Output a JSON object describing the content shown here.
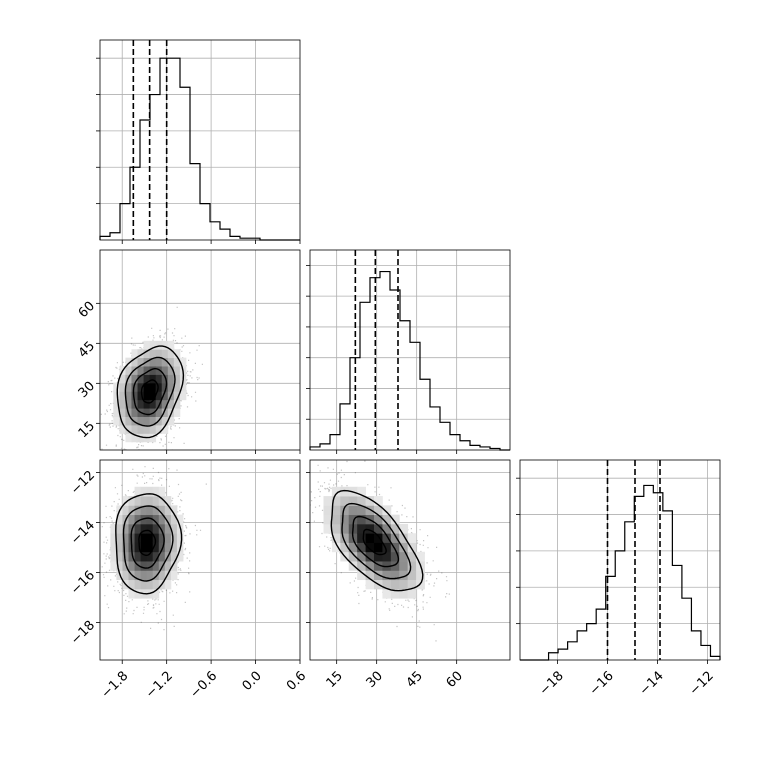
{
  "chart_data": {
    "type": "corner",
    "colors": {
      "line": "#000000",
      "grid": "#b0b0b0",
      "scatter": "#555555"
    },
    "grid": true,
    "params": [
      {
        "range": [
          -2.1,
          0.6
        ],
        "ticks": [
          -1.8,
          -1.2,
          -0.6,
          0.0,
          0.6
        ],
        "tick_labels": [
          "−1.8",
          "−1.2",
          "−0.6",
          "0.0",
          "0.6"
        ],
        "quantiles": [
          -1.65,
          -1.43,
          -1.2
        ]
      },
      {
        "range": [
          5,
          80
        ],
        "ticks": [
          15,
          30,
          45,
          60
        ],
        "tick_labels": [
          "15",
          "30",
          "45",
          "60"
        ],
        "quantiles": [
          22,
          29.5,
          38
        ]
      },
      {
        "range": [
          -19.5,
          -11.5
        ],
        "ticks": [
          -18,
          -16,
          -14,
          -12
        ],
        "tick_labels": [
          "−18",
          "−16",
          "−14",
          "−12"
        ],
        "quantiles": [
          -16.0,
          -14.9,
          -13.9
        ]
      }
    ],
    "hist_1d": [
      {
        "edges_range": [
          -2.1,
          0.6
        ],
        "counts": [
          1,
          2,
          10,
          20,
          33,
          40,
          50,
          50,
          42,
          21,
          10,
          5,
          3,
          1,
          0.5,
          0.5,
          0,
          0,
          0,
          0
        ]
      },
      {
        "edges_range": [
          5,
          80
        ],
        "counts": [
          1,
          2,
          5,
          15,
          30,
          48,
          56,
          58,
          52,
          42,
          35,
          23,
          14,
          9,
          5,
          3,
          1.5,
          1,
          0.5,
          0
        ]
      },
      {
        "edges_range": [
          -19.5,
          -11.5
        ],
        "counts": [
          0,
          0,
          0,
          2,
          3,
          5,
          8,
          10,
          14,
          23,
          30,
          38,
          45,
          48,
          46,
          41,
          26,
          17,
          8,
          4,
          1
        ]
      }
    ],
    "hist_ylims": [
      55,
      65,
      55
    ],
    "panels_2d": [
      {
        "x_param": 0,
        "y_param": 1,
        "center": [
          -1.43,
          27
        ],
        "sigma": [
          0.22,
          8.5
        ],
        "rho": 0.25,
        "contour_levels": [
          0.5,
          1.0,
          1.5,
          2.0
        ]
      },
      {
        "x_param": 0,
        "y_param": 2,
        "center": [
          -1.47,
          -14.8
        ],
        "sigma": [
          0.22,
          1.0
        ],
        "rho": 0.05,
        "contour_levels": [
          0.5,
          1.0,
          1.5,
          2.0
        ]
      },
      {
        "x_param": 1,
        "y_param": 2,
        "center": [
          29,
          -14.8
        ],
        "sigma": [
          8.5,
          1.0
        ],
        "rho": -0.6,
        "contour_levels": [
          0.5,
          1.0,
          1.5,
          2.0
        ]
      }
    ]
  }
}
